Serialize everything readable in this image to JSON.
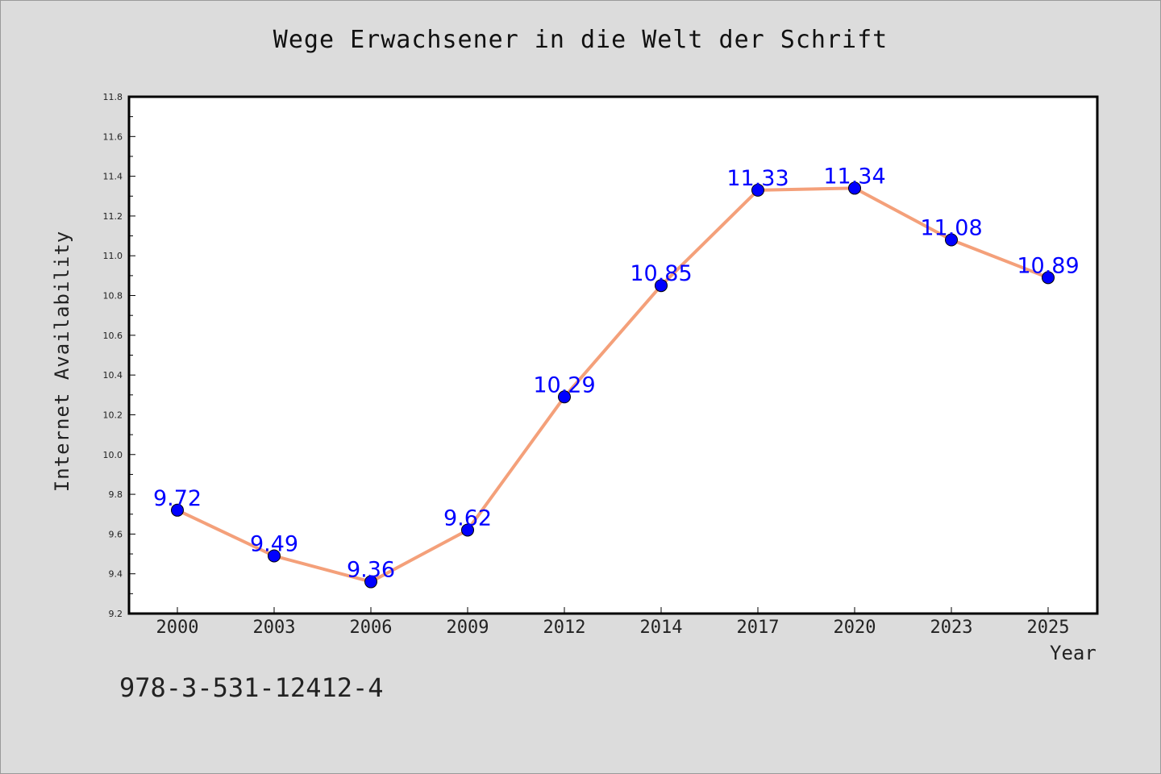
{
  "chart_data": {
    "type": "line",
    "title": "Wege Erwachsener in die Welt der Schrift",
    "xlabel": "Year",
    "ylabel": "Internet Availability",
    "categories": [
      "2000",
      "2003",
      "2006",
      "2009",
      "2012",
      "2014",
      "2017",
      "2020",
      "2023",
      "2025"
    ],
    "values": [
      9.72,
      9.49,
      9.36,
      9.62,
      10.29,
      10.85,
      11.33,
      11.34,
      11.08,
      10.89
    ],
    "data_labels": [
      "9.72",
      "9.49",
      "9.36",
      "9.62",
      "10.29",
      "10.85",
      "11.33",
      "11.34",
      "11.08",
      "10.89"
    ],
    "ylim": [
      9.2,
      11.8
    ],
    "y_ticks": [
      "9.2",
      "9.4",
      "9.6",
      "9.8",
      "10.0",
      "10.2",
      "10.4",
      "10.6",
      "10.8",
      "11.0",
      "11.2",
      "11.4",
      "11.6",
      "11.8"
    ],
    "grid": false,
    "colors": {
      "line": "#f4a07a",
      "marker": "#0000ff",
      "data_label": "#0000ff",
      "plot_bg": "#ffffff",
      "page_bg": "#dcdcdc"
    }
  },
  "footer": {
    "isbn": "978-3-531-12412-4"
  }
}
